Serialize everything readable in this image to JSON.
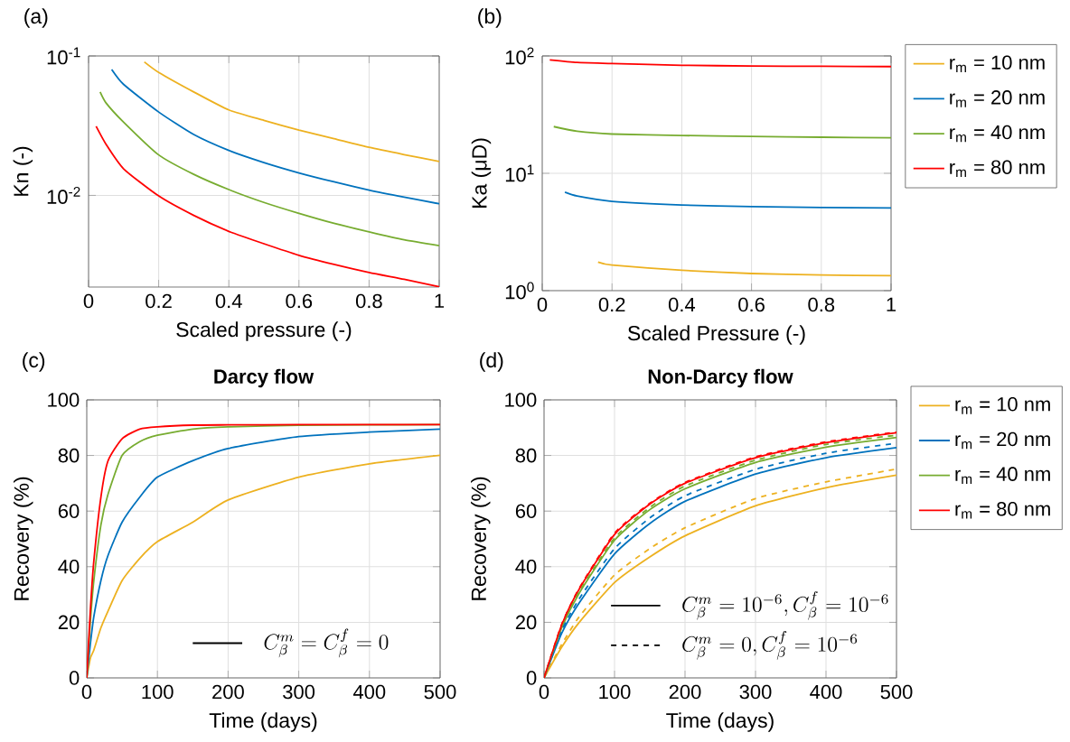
{
  "chart_data": [
    {
      "type": "line",
      "xlabel": "Scaled pressure (-)",
      "ylabel": "Kn (-)",
      "log": "y",
      "grid": true,
      "annotations": [
        "(a)"
      ],
      "xlim": [
        0,
        1
      ],
      "ylim": [
        0.0022,
        0.1
      ],
      "xticks": [
        0,
        0.2,
        0.4,
        0.6,
        0.8,
        1
      ],
      "yticks": [
        {
          "value": 0.01,
          "label": "10$^{-2}$"
        },
        {
          "value": 0.1,
          "label": "10$^{-1}$"
        }
      ],
      "series": [
        {
          "color": "#edb120",
          "x": [
            0.159,
            0.2,
            0.3,
            0.4,
            0.5,
            0.6,
            0.7,
            0.8,
            0.9,
            1.0
          ],
          "values": [
            0.0906,
            0.0762,
            0.0552,
            0.041,
            0.0345,
            0.0294,
            0.0255,
            0.0221,
            0.0196,
            0.0175
          ]
        },
        {
          "color": "#0072bd",
          "x": [
            0.066,
            0.1,
            0.2,
            0.3,
            0.4,
            0.5,
            0.6,
            0.7,
            0.8,
            0.9,
            1.0
          ],
          "values": [
            0.08,
            0.0625,
            0.0396,
            0.0273,
            0.021,
            0.0172,
            0.0145,
            0.0125,
            0.0109,
            0.0097,
            0.0087
          ]
        },
        {
          "color": "#77ac30",
          "x": [
            0.033,
            0.05,
            0.1,
            0.2,
            0.3,
            0.4,
            0.5,
            0.6,
            0.7,
            0.8,
            0.9,
            1.0
          ],
          "values": [
            0.0552,
            0.046,
            0.0335,
            0.0195,
            0.01415,
            0.011,
            0.0089,
            0.00743,
            0.0063,
            0.00547,
            0.0048,
            0.00436
          ]
        },
        {
          "color": "#ff0000",
          "x": [
            0.0215,
            0.05,
            0.1,
            0.2,
            0.3,
            0.4,
            0.5,
            0.6,
            0.7,
            0.8,
            0.9,
            1.0
          ],
          "values": [
            0.0313,
            0.0232,
            0.0155,
            0.0099,
            0.00718,
            0.00552,
            0.0045,
            0.00372,
            0.0032,
            0.0028,
            0.0025,
            0.00221
          ]
        }
      ]
    },
    {
      "type": "line",
      "xlabel": "Scaled Pressure (-)",
      "ylabel": "Ka (μD)",
      "log": "y",
      "grid": true,
      "legend": "right",
      "annotations": [
        "(b)"
      ],
      "xlim": [
        0,
        1
      ],
      "ylim": [
        1,
        100
      ],
      "xticks": [
        0,
        0.2,
        0.4,
        0.6,
        0.8,
        1
      ],
      "yticks": [
        {
          "value": 1,
          "label": "10$^{0}$"
        },
        {
          "value": 10,
          "label": "10$^{1}$"
        },
        {
          "value": 100,
          "label": "10$^{2}$"
        }
      ],
      "series": [
        {
          "name": "r$_{m}$ = 10 nm",
          "color": "#edb120",
          "x": [
            0.16,
            0.2,
            0.4,
            0.6,
            0.8,
            1.0
          ],
          "values": [
            1.75,
            1.65,
            1.49,
            1.4,
            1.36,
            1.34
          ]
        },
        {
          "name": "r$_{m}$ = 20 nm",
          "color": "#0072bd",
          "x": [
            0.065,
            0.1,
            0.2,
            0.4,
            0.6,
            0.8,
            1.0
          ],
          "values": [
            6.9,
            6.4,
            5.77,
            5.37,
            5.21,
            5.12,
            5.06
          ]
        },
        {
          "name": "r$_{m}$ = 40 nm",
          "color": "#77ac30",
          "x": [
            0.033,
            0.1,
            0.2,
            0.4,
            0.6,
            0.8,
            1.0
          ],
          "values": [
            25,
            22.8,
            21.6,
            21,
            20.6,
            20.3,
            20.1
          ]
        },
        {
          "name": "r$_{m}$ = 80 nm",
          "color": "#ff0000",
          "x": [
            0.0216,
            0.1,
            0.2,
            0.4,
            0.6,
            0.8,
            1.0
          ],
          "values": [
            92.6,
            88,
            86.3,
            83.3,
            82.2,
            81.6,
            81.2
          ]
        }
      ]
    },
    {
      "type": "line",
      "title": "Darcy flow",
      "xlabel": "Time (days)",
      "ylabel": "Recovery (%)",
      "grid": true,
      "annotations": [
        "(c)",
        "C_{\\beta}^{m} = C_{\\beta}^{f} = 0"
      ],
      "xlim": [
        0,
        500
      ],
      "ylim": [
        0,
        100
      ],
      "xticks": [
        0,
        100,
        200,
        300,
        400,
        500
      ],
      "yticks": [
        0,
        20,
        40,
        60,
        80,
        100
      ],
      "series": [
        {
          "color": "#edb120",
          "x": [
            0,
            5,
            10,
            20,
            30,
            50,
            75,
            100,
            150,
            200,
            300,
            400,
            500
          ],
          "values": [
            0,
            7,
            10,
            18,
            24,
            35,
            43,
            49,
            56,
            64,
            72.2,
            77,
            80.1
          ]
        },
        {
          "color": "#0072bd",
          "x": [
            0,
            5,
            10,
            20,
            30,
            50,
            75,
            100,
            150,
            200,
            300,
            400,
            500
          ],
          "values": [
            0,
            12,
            22,
            35,
            44,
            56,
            65,
            72.2,
            78.1,
            82.5,
            86.8,
            88.4,
            89.5
          ]
        },
        {
          "color": "#77ac30",
          "x": [
            0,
            5,
            10,
            20,
            30,
            50,
            75,
            100,
            150,
            200,
            300,
            400,
            500
          ],
          "values": [
            0,
            20,
            35,
            55,
            66,
            80,
            85,
            87.3,
            89.5,
            90.3,
            90.9,
            91,
            91.1
          ]
        },
        {
          "color": "#ff0000",
          "x": [
            0,
            5,
            10,
            20,
            30,
            50,
            75,
            100,
            150,
            200,
            300,
            400,
            500
          ],
          "values": [
            0,
            24,
            42,
            65,
            78,
            86,
            89.5,
            90.3,
            90.9,
            91,
            91.1,
            91.1,
            91.1
          ]
        }
      ]
    },
    {
      "type": "line",
      "title": "Non-Darcy flow",
      "xlabel": "Time (days)",
      "ylabel": "Recovery (%)",
      "grid": true,
      "legend": "right",
      "annotations": [
        "(d)",
        "C_{\\beta}^{m} = 10^{-6}, C_{\\beta}^{f} = 10^{-6}",
        "C_{\\beta}^{m} = 0, C_{\\beta}^{f} = 10^{-6}"
      ],
      "xlim": [
        0,
        500
      ],
      "ylim": [
        0,
        100
      ],
      "xticks": [
        0,
        100,
        200,
        300,
        400,
        500
      ],
      "yticks": [
        0,
        20,
        40,
        60,
        80,
        100
      ],
      "series": [
        {
          "name": "r$_{m}$ = 10 nm",
          "color": "#edb120",
          "x": [
            0,
            25,
            50,
            100,
            150,
            200,
            300,
            400,
            500
          ],
          "values": [
            0,
            11,
            20,
            34.3,
            43.5,
            51.1,
            61.9,
            68.4,
            72.9
          ]
        },
        {
          "name": "r$_{m}$ = 20 nm",
          "color": "#0072bd",
          "x": [
            0,
            25,
            50,
            100,
            150,
            200,
            300,
            400,
            500
          ],
          "values": [
            0,
            16,
            27,
            44.6,
            55.5,
            63.5,
            73.3,
            79.2,
            82.8
          ]
        },
        {
          "name": "r$_{m}$ = 40 nm",
          "color": "#77ac30",
          "x": [
            0,
            25,
            50,
            100,
            150,
            200,
            300,
            400,
            500
          ],
          "values": [
            0,
            18,
            30.5,
            49.5,
            60.5,
            68,
            77.5,
            83,
            86.5
          ]
        },
        {
          "name": "r$_{m}$ = 80 nm",
          "color": "#ff0000",
          "x": [
            0,
            25,
            50,
            100,
            150,
            200,
            300,
            400,
            500
          ],
          "values": [
            0,
            19,
            32,
            51.6,
            62.5,
            70,
            79.2,
            84.6,
            88.2
          ]
        },
        {
          "color": "#edb120",
          "line_style": "dashed",
          "x": [
            0,
            25,
            50,
            100,
            150,
            200,
            300,
            400,
            500
          ],
          "values": [
            0,
            12,
            22,
            37,
            46.5,
            54,
            64.5,
            70.5,
            75.1
          ]
        },
        {
          "color": "#0072bd",
          "line_style": "dashed",
          "x": [
            0,
            25,
            50,
            100,
            150,
            200,
            300,
            400,
            500
          ],
          "values": [
            0,
            17,
            28.5,
            46.5,
            57.5,
            65.5,
            75,
            80.8,
            84.4
          ]
        },
        {
          "color": "#77ac30",
          "line_style": "dashed",
          "x": [
            0,
            25,
            50,
            100,
            150,
            200,
            300,
            400,
            500
          ],
          "values": [
            0,
            18.5,
            31,
            50.3,
            61.3,
            69,
            78.3,
            84,
            87.3
          ]
        },
        {
          "color": "#ff0000",
          "line_style": "dashed",
          "x": [
            0,
            25,
            50,
            100,
            150,
            200,
            300,
            400,
            500
          ],
          "values": [
            0,
            19.2,
            32.3,
            52,
            62.8,
            70.3,
            79.5,
            84.9,
            88.4
          ]
        }
      ]
    }
  ]
}
